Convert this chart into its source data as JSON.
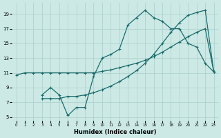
{
  "xlabel": "Humidex (Indice chaleur)",
  "xlim": [
    -0.5,
    23.5
  ],
  "ylim": [
    4.5,
    20.5
  ],
  "xticks": [
    0,
    1,
    2,
    3,
    4,
    5,
    6,
    7,
    8,
    9,
    10,
    11,
    12,
    13,
    14,
    15,
    16,
    17,
    18,
    19,
    20,
    21,
    22,
    23
  ],
  "yticks": [
    5,
    7,
    9,
    11,
    13,
    15,
    17,
    19
  ],
  "bg_color": "#cce9e5",
  "grid_color": "#aacfca",
  "line_color": "#1a6b6b",
  "series1_x": [
    0,
    1,
    2,
    3,
    4,
    5,
    6,
    7,
    8,
    9,
    10,
    11,
    12,
    13,
    14,
    15,
    16,
    17,
    18,
    19,
    20,
    21,
    22,
    23
  ],
  "series1_y": [
    10.7,
    11.0,
    11.0,
    11.0,
    11.0,
    11.0,
    11.0,
    11.0,
    11.0,
    11.0,
    11.2,
    11.4,
    11.7,
    12.0,
    12.3,
    12.7,
    13.2,
    13.8,
    14.5,
    15.2,
    15.9,
    16.5,
    17.0,
    11.1
  ],
  "series2_x": [
    3,
    4,
    5,
    6,
    7,
    8,
    9,
    10,
    11,
    12,
    13,
    14,
    15,
    16,
    17,
    18,
    19,
    20,
    21,
    22,
    23
  ],
  "series2_y": [
    8.0,
    9.0,
    8.0,
    5.2,
    6.3,
    6.3,
    10.5,
    13.0,
    13.5,
    14.2,
    17.5,
    18.5,
    19.5,
    18.5,
    18.0,
    17.0,
    17.0,
    15.0,
    14.5,
    12.3,
    11.1
  ],
  "series3_x": [
    3,
    4,
    5,
    6,
    7,
    8,
    9,
    10,
    11,
    12,
    13,
    14,
    15,
    16,
    17,
    18,
    19,
    20,
    21,
    22,
    23
  ],
  "series3_y": [
    7.5,
    7.5,
    7.5,
    7.8,
    7.8,
    8.0,
    8.3,
    8.7,
    9.2,
    9.8,
    10.5,
    11.3,
    12.3,
    13.5,
    15.0,
    16.5,
    17.8,
    18.8,
    19.2,
    19.5,
    11.1
  ]
}
